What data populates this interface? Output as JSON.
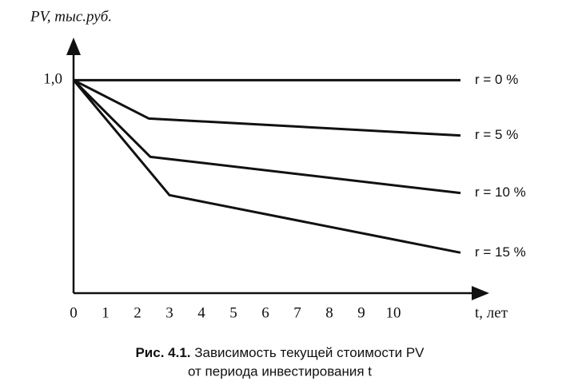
{
  "chart_data": {
    "type": "line",
    "y_label": "PV, тыс.руб.",
    "x_label": "t, лет",
    "caption_label": "Рис. 4.1.",
    "caption_lines": [
      "Зависимость текущей стоимости PV",
      "от периода инвестирования t"
    ],
    "xlim": [
      0,
      13
    ],
    "ylim": [
      0,
      1.2
    ],
    "xticks": [
      0,
      1,
      2,
      3,
      4,
      5,
      6,
      7,
      8,
      9,
      10
    ],
    "yticks": [
      {
        "value": 1,
        "label": "1,0"
      }
    ],
    "grid": false,
    "series": [
      {
        "name": "r = 0 %",
        "color": "#111111",
        "x": [
          0,
          12.1
        ],
        "values": [
          1,
          1
        ]
      },
      {
        "name": "r = 5 %",
        "color": "#111111",
        "x": [
          0,
          2.35,
          12.1
        ],
        "values": [
          1,
          0.82,
          0.74
        ]
      },
      {
        "name": "r = 10 %",
        "color": "#111111",
        "x": [
          0,
          2.4,
          12.1
        ],
        "values": [
          1,
          0.64,
          0.47
        ]
      },
      {
        "name": "r = 15 %",
        "color": "#111111",
        "x": [
          0,
          3,
          12.1
        ],
        "values": [
          1,
          0.46,
          0.19
        ]
      }
    ]
  }
}
